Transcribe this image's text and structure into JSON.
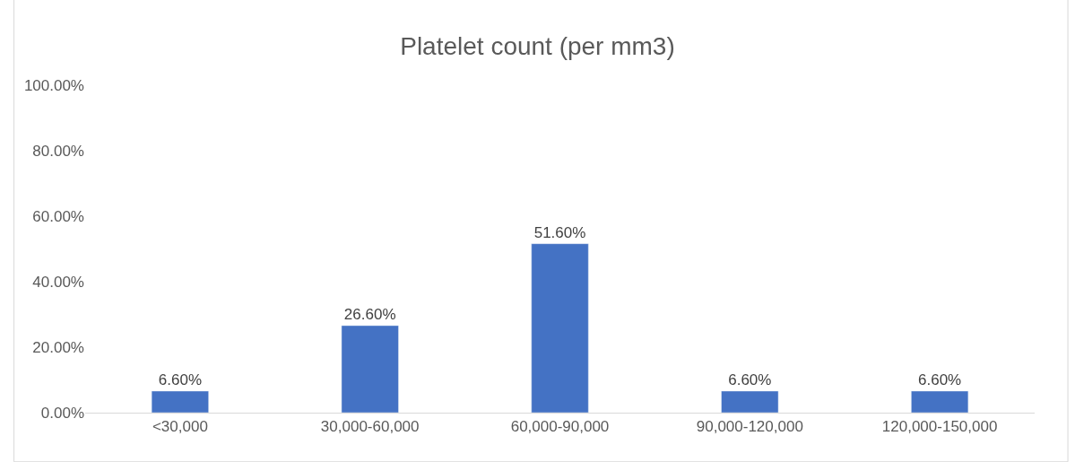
{
  "chart_data": {
    "type": "bar",
    "title": "Platelet count (per mm3)",
    "categories": [
      "<30,000",
      "30,000-60,000",
      "60,000-90,000",
      "90,000-120,000",
      "120,000-150,000"
    ],
    "values": [
      6.6,
      26.6,
      51.6,
      6.6,
      6.6
    ],
    "value_labels": [
      "6.60%",
      "26.60%",
      "51.60%",
      "6.60%",
      "6.60%"
    ],
    "color": "#4472c4",
    "ylim": [
      0,
      100
    ],
    "yticks": [
      {
        "value": 0,
        "label": "0.00%"
      },
      {
        "value": 20,
        "label": "20.00%"
      },
      {
        "value": 40,
        "label": "40.00%"
      },
      {
        "value": 60,
        "label": "60.00%"
      },
      {
        "value": 80,
        "label": "80.00%"
      },
      {
        "value": 100,
        "label": "100.00%"
      }
    ],
    "grid": false,
    "legend": false
  }
}
